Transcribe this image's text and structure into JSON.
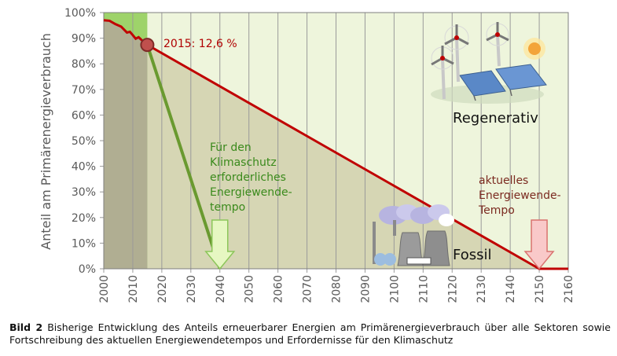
{
  "chart_data": {
    "type": "line",
    "xlim": [
      2000,
      2160
    ],
    "ylim": [
      0,
      100
    ],
    "x_ticks": [
      2000,
      2010,
      2020,
      2030,
      2040,
      2050,
      2060,
      2070,
      2080,
      2090,
      2100,
      2110,
      2120,
      2130,
      2140,
      2150,
      2160
    ],
    "y_ticks": [
      "0%",
      "10%",
      "20%",
      "30%",
      "40%",
      "50%",
      "60%",
      "70%",
      "80%",
      "90%",
      "100%"
    ],
    "y_tick_values": [
      0,
      10,
      20,
      30,
      40,
      50,
      60,
      70,
      80,
      90,
      100
    ],
    "ylabel": "Anteil am Primärenergieverbrauch",
    "history_until": 2015,
    "series": [
      {
        "name": "Fossil",
        "color": "#c00000",
        "x": [
          2000,
          2002,
          2004,
          2006,
          2008,
          2009,
          2010,
          2011,
          2012,
          2013,
          2014,
          2015
        ],
        "y": [
          97.0,
          96.8,
          95.5,
          94.5,
          92.2,
          92.5,
          91.2,
          89.8,
          90.4,
          89.3,
          88.5,
          87.4
        ]
      },
      {
        "name": "aktuelles Energiewende-Tempo",
        "color": "#c00000",
        "x": [
          2015,
          2150,
          2160
        ],
        "y": [
          87.4,
          0,
          0
        ]
      },
      {
        "name": "Für den Klimaschutz erforderliches Energiewende-tempo",
        "color": "#6a9a30",
        "x": [
          2015,
          2040
        ],
        "y": [
          87.4,
          0
        ]
      }
    ],
    "annotations": {
      "point_label": "2015: 12,6 %",
      "green_text": [
        "Für den",
        "Klimaschutz",
        "erforderliches",
        "Energiewende-",
        "tempo"
      ],
      "red_text": [
        "aktuelles",
        "Energiewende-",
        "Tempo"
      ],
      "regenerativ": "Regenerativ",
      "fossil": "Fossil",
      "green_arrow_year": 2040,
      "red_arrow_year": 2150
    },
    "colors": {
      "regenerative_area": "#eef5dc",
      "fossil_area": "#d6d6b4",
      "history_fossil": "#b0ae92",
      "history_renewable": "#9ed36a"
    }
  },
  "caption": {
    "label": "Bild 2",
    "text": "Bisherige Entwicklung des Anteils erneuerbarer Energien am Primärenergieverbrauch über alle Sektoren sowie Fortschreibung des aktuellen Energiewendetempos und Erfordernisse für den Klimaschutz"
  }
}
